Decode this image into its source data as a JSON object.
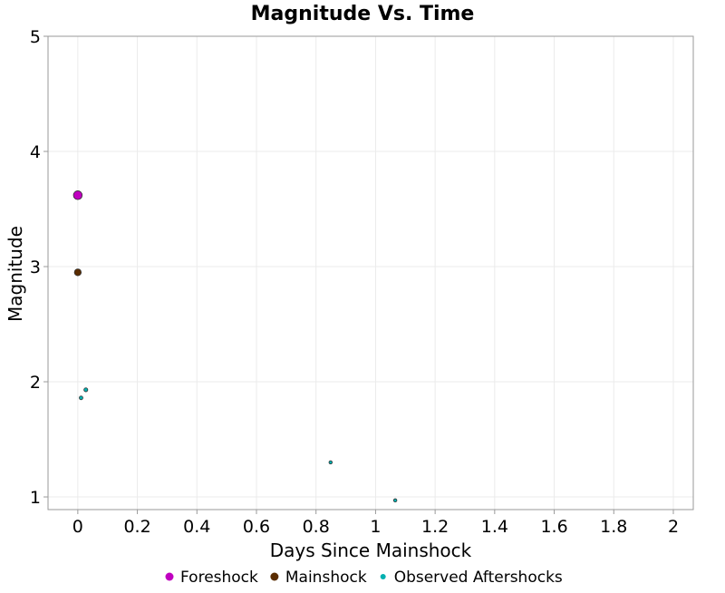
{
  "chart_data": {
    "type": "scatter",
    "title": "Magnitude Vs. Time",
    "xlabel": "Days Since Mainshock",
    "ylabel": "Magnitude",
    "xlim": [
      -0.1,
      2.067
    ],
    "ylim": [
      0.89,
      5
    ],
    "xticks": [
      0,
      0.2,
      0.4,
      0.6,
      0.8,
      1,
      1.2,
      1.4,
      1.6,
      1.8,
      2
    ],
    "yticks": [
      1,
      2,
      3,
      4,
      5
    ],
    "grid": true,
    "legend_position": "bottom",
    "series": [
      {
        "name": "Foreshock",
        "color": "#c000c0",
        "points": [
          {
            "x": 0,
            "y": 3.62
          }
        ]
      },
      {
        "name": "Mainshock",
        "color": "#5a2c00",
        "points": [
          {
            "x": 0,
            "y": 2.95
          }
        ]
      },
      {
        "name": "Observed Aftershocks",
        "color": "#00b0b0",
        "points": [
          {
            "x": 0.011,
            "y": 1.86
          },
          {
            "x": 0.027,
            "y": 1.93
          },
          {
            "x": 0.849,
            "y": 1.3
          },
          {
            "x": 1.066,
            "y": 0.97
          }
        ]
      }
    ]
  }
}
